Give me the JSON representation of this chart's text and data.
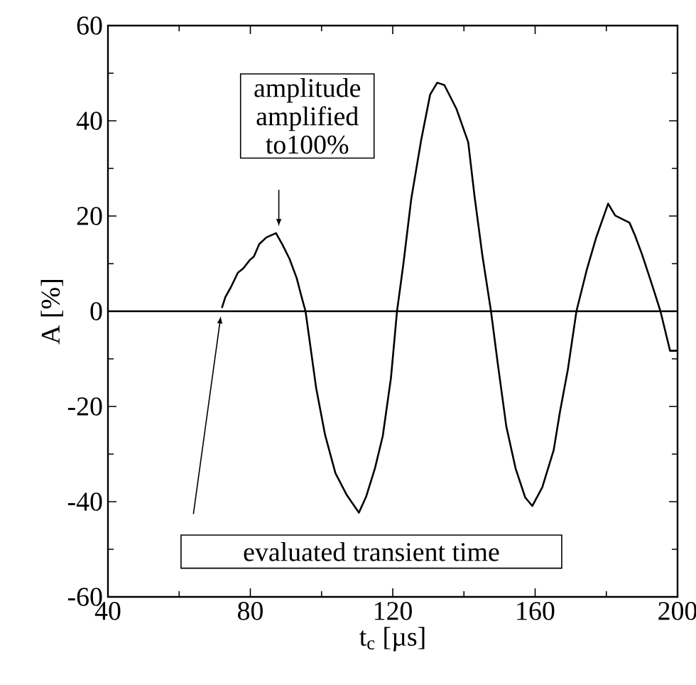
{
  "chart_data": {
    "type": "line",
    "xlabel": "t$_{c}$ [µs]",
    "ylabel": "A [%]",
    "xlim": [
      40,
      200
    ],
    "xticks": [
      40,
      80,
      120,
      160,
      200
    ],
    "ylim": [
      -60,
      60
    ],
    "yticks": [
      -60,
      -40,
      -20,
      0,
      20,
      40,
      60
    ],
    "grid": false,
    "marker": "none",
    "line_style": "solid",
    "ref_lines": [
      {
        "axis": "y",
        "value": 0,
        "color": "#000000"
      }
    ],
    "annotations": [
      {
        "text": "amplitude amplified to100%",
        "x": 88,
        "y": 17
      },
      "evaluated transient time"
    ],
    "series": [
      {
        "color": "#000000",
        "x": [
          72,
          73,
          74.5,
          76.5,
          78,
          79.9,
          81,
          82.5,
          84.5,
          87.2,
          89,
          91,
          93,
          94.5,
          95.5,
          98.5,
          101,
          103.9,
          107,
          110.5,
          112.5,
          115,
          117.2,
          119.5,
          121.2,
          123,
          125.2,
          128,
          130.5,
          132.5,
          134.5,
          137.9,
          141.2,
          143,
          145.2,
          147.6,
          149.5,
          151.9,
          154.5,
          157.2,
          159.2,
          162,
          165.2,
          167,
          169.2,
          171.6,
          174.5,
          177.2,
          180.5,
          182.5,
          186.5,
          188,
          190,
          191.9,
          193.5,
          195.2,
          196.5,
          197.9,
          200
        ],
        "values": [
          0.7,
          3,
          5,
          8.1,
          9,
          10.8,
          11.5,
          14.1,
          15.5,
          16.4,
          14,
          11,
          7,
          2.7,
          0,
          -16.2,
          -26,
          -34,
          -38.5,
          -42.3,
          -39,
          -33,
          -26.2,
          -14,
          0,
          10,
          23.6,
          36,
          45.5,
          48,
          47.5,
          42.5,
          35.5,
          24,
          11.6,
          0,
          -11,
          -24.2,
          -33,
          -39.1,
          -40.9,
          -37,
          -29.2,
          -21,
          -12.2,
          0,
          8.7,
          15.6,
          22.6,
          20.1,
          18.6,
          16,
          12,
          7.7,
          4,
          0,
          -4,
          -8.3,
          -8.3
        ]
      }
    ]
  }
}
